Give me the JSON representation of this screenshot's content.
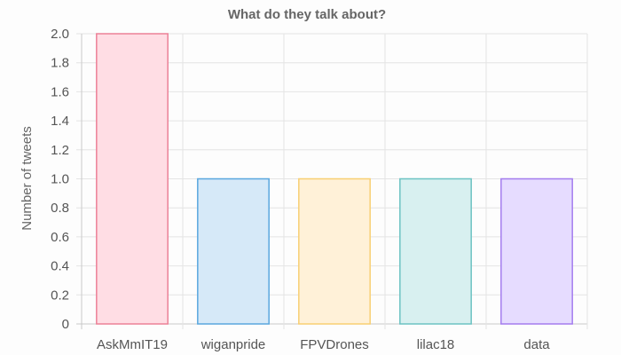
{
  "chart_data": {
    "type": "bar",
    "title": "What do they talk about?",
    "xlabel": "",
    "ylabel": "Number of tweets",
    "categories": [
      "AskMmIT19",
      "wiganpride",
      "FPVDrones",
      "lilac18",
      "data"
    ],
    "values": [
      2,
      1,
      1,
      1,
      1
    ],
    "ylim": [
      0,
      2
    ],
    "yticks": [
      "0",
      "0.2",
      "0.4",
      "0.6",
      "0.8",
      "1.0",
      "1.2",
      "1.4",
      "1.6",
      "1.8",
      "2.0"
    ],
    "grid": true,
    "legend": "none",
    "colors": [
      {
        "fill": "#ffdde4",
        "stroke": "#ec8197"
      },
      {
        "fill": "#d6e9f8",
        "stroke": "#5aa7de"
      },
      {
        "fill": "#fff1d8",
        "stroke": "#f8cf73"
      },
      {
        "fill": "#d8f0f0",
        "stroke": "#6cc3c3"
      },
      {
        "fill": "#e6dcff",
        "stroke": "#a47dee"
      }
    ]
  }
}
